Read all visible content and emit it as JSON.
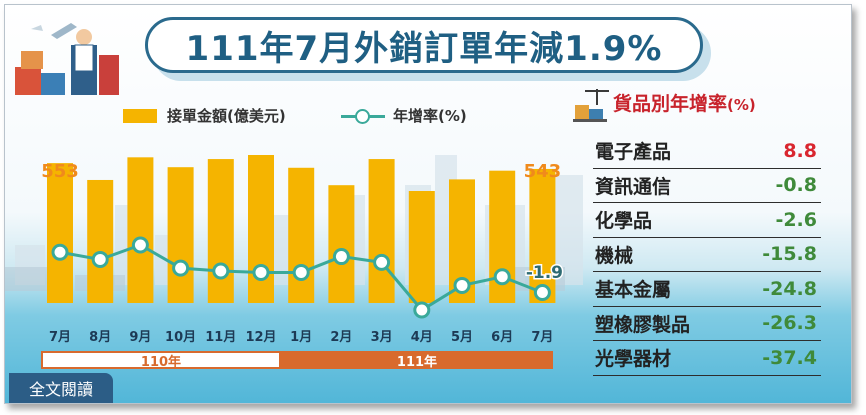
{
  "title": "111年7月外銷訂單年減1.9%",
  "legend": {
    "bar_label": "接單金額(億美元)",
    "line_label": "年增率(%)"
  },
  "chart_data": {
    "type": "bar",
    "categories": [
      "7月",
      "8月",
      "9月",
      "10月",
      "11月",
      "12月",
      "1月",
      "2月",
      "3月",
      "4月",
      "5月",
      "6月",
      "7月"
    ],
    "series": [
      {
        "name": "接單金額(億美元)",
        "type": "bar",
        "values": [
          553,
          524,
          563,
          546,
          560,
          567,
          545,
          515,
          560,
          505,
          525,
          540,
          543
        ]
      },
      {
        "name": "年增率(%)",
        "type": "line",
        "values": [
          26.0,
          21.0,
          31.0,
          15.0,
          13.0,
          12.0,
          12.0,
          23.0,
          19.0,
          -14.0,
          3.0,
          9.0,
          -1.9
        ]
      }
    ],
    "data_labels": {
      "first_bar": "553",
      "last_bar": "543",
      "last_point": "-1.9"
    },
    "year_groups": [
      {
        "label": "110年"
      },
      {
        "label": "111年"
      }
    ],
    "colors": {
      "bar": "#f5b400",
      "line": "#3aa99a",
      "bar_label": "#f08a1c"
    }
  },
  "goods": {
    "title": "貨品別年增率",
    "unit": "(%)",
    "items": [
      {
        "name": "電子產品",
        "value": "8.8"
      },
      {
        "name": "資訊通信",
        "value": "-0.8"
      },
      {
        "name": "化學品",
        "value": "-2.6"
      },
      {
        "name": "機械",
        "value": "-15.8"
      },
      {
        "name": "基本金屬",
        "value": "-24.8"
      },
      {
        "name": "塑橡膠製品",
        "value": "-26.3"
      },
      {
        "name": "光學器材",
        "value": "-37.4"
      }
    ]
  },
  "read_all": "全文閱讀"
}
